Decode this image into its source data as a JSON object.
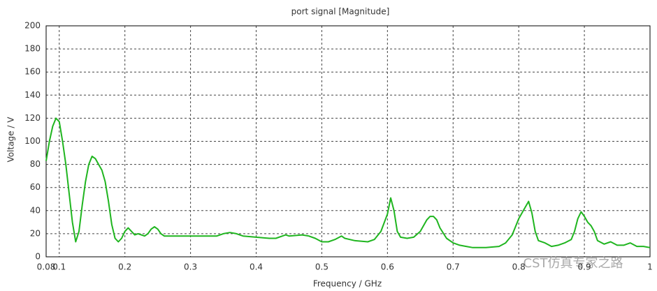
{
  "chart_data": {
    "type": "line",
    "title": "port signal [Magnitude]",
    "x_label": "Frequency / GHz",
    "y_label": "Voltage / V",
    "annotation": "CST仿真专家之路",
    "xlim": [
      0.08,
      1
    ],
    "ylim": [
      0,
      200
    ],
    "xticks": [
      0.08,
      0.1,
      0.2,
      0.3,
      0.4,
      0.5,
      0.6,
      0.7,
      0.8,
      0.9,
      1
    ],
    "yticks": [
      0,
      20,
      40,
      60,
      80,
      100,
      120,
      140,
      160,
      180,
      200
    ],
    "grid": true,
    "x": [
      0.08,
      0.085,
      0.09,
      0.095,
      0.1,
      0.105,
      0.11,
      0.115,
      0.12,
      0.125,
      0.13,
      0.135,
      0.14,
      0.145,
      0.15,
      0.155,
      0.16,
      0.165,
      0.17,
      0.175,
      0.18,
      0.185,
      0.19,
      0.195,
      0.2,
      0.205,
      0.21,
      0.215,
      0.22,
      0.225,
      0.23,
      0.235,
      0.24,
      0.245,
      0.25,
      0.255,
      0.26,
      0.3,
      0.34,
      0.35,
      0.36,
      0.37,
      0.38,
      0.4,
      0.42,
      0.43,
      0.44,
      0.445,
      0.45,
      0.47,
      0.48,
      0.49,
      0.5,
      0.51,
      0.52,
      0.53,
      0.535,
      0.55,
      0.57,
      0.58,
      0.59,
      0.6,
      0.605,
      0.61,
      0.615,
      0.62,
      0.63,
      0.64,
      0.65,
      0.66,
      0.665,
      0.67,
      0.675,
      0.68,
      0.69,
      0.7,
      0.71,
      0.72,
      0.73,
      0.75,
      0.77,
      0.78,
      0.79,
      0.8,
      0.81,
      0.815,
      0.82,
      0.825,
      0.83,
      0.84,
      0.85,
      0.86,
      0.87,
      0.88,
      0.885,
      0.89,
      0.895,
      0.9,
      0.905,
      0.91,
      0.915,
      0.92,
      0.93,
      0.94,
      0.95,
      0.96,
      0.97,
      0.98,
      0.99,
      1.0
    ],
    "series": [
      {
        "name": "port signal",
        "color": "#1fb51f",
        "values": [
          83,
          100,
          113,
          120,
          117,
          100,
          80,
          55,
          30,
          13,
          22,
          45,
          65,
          80,
          87,
          85,
          80,
          75,
          65,
          48,
          28,
          16,
          13,
          16,
          22,
          25,
          22,
          19,
          20,
          19,
          18,
          20,
          24,
          26,
          24,
          20,
          18,
          18,
          18,
          20,
          21,
          20,
          18,
          17,
          16,
          16,
          18,
          19,
          18,
          19,
          18,
          16,
          13,
          13,
          15,
          18,
          16,
          14,
          13,
          15,
          22,
          37,
          51,
          40,
          22,
          17,
          16,
          17,
          22,
          32,
          35,
          35,
          32,
          25,
          16,
          12,
          10,
          9,
          8,
          8,
          9,
          12,
          19,
          33,
          43,
          48,
          38,
          22,
          14,
          12,
          9,
          10,
          12,
          15,
          22,
          33,
          39,
          35,
          30,
          27,
          22,
          14,
          11,
          13,
          10,
          10,
          12,
          9,
          9,
          8
        ]
      }
    ]
  }
}
